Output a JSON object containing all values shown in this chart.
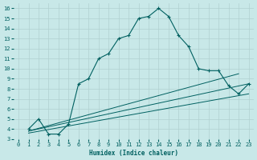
{
  "xlabel": "Humidex (Indice chaleur)",
  "bg_color": "#c8e8e8",
  "grid_color": "#b0d0d0",
  "line_color": "#006060",
  "xlim": [
    -0.5,
    23.5
  ],
  "ylim": [
    3,
    16.5
  ],
  "xticks": [
    0,
    1,
    2,
    3,
    4,
    5,
    6,
    7,
    8,
    9,
    10,
    11,
    12,
    13,
    14,
    15,
    16,
    17,
    18,
    19,
    20,
    21,
    22,
    23
  ],
  "yticks": [
    3,
    4,
    5,
    6,
    7,
    8,
    9,
    10,
    11,
    12,
    13,
    14,
    15,
    16
  ],
  "curve1_x": [
    1,
    2,
    3,
    4,
    5,
    6,
    7,
    8,
    9,
    10,
    11,
    12,
    13,
    14,
    15,
    16,
    17,
    18,
    19,
    20,
    21,
    22,
    23
  ],
  "curve1_y": [
    4.0,
    5.0,
    3.5,
    3.5,
    4.5,
    8.5,
    9.0,
    11.0,
    11.5,
    13.0,
    13.3,
    15.0,
    15.2,
    16.0,
    15.2,
    13.3,
    12.2,
    10.0,
    9.8,
    9.8,
    8.3,
    7.5,
    8.5
  ],
  "line1_x": [
    1,
    22
  ],
  "line1_y": [
    3.8,
    9.5
  ],
  "line2_x": [
    1,
    23
  ],
  "line2_y": [
    3.8,
    8.5
  ],
  "line3_x": [
    1,
    23
  ],
  "line3_y": [
    3.6,
    7.5
  ]
}
